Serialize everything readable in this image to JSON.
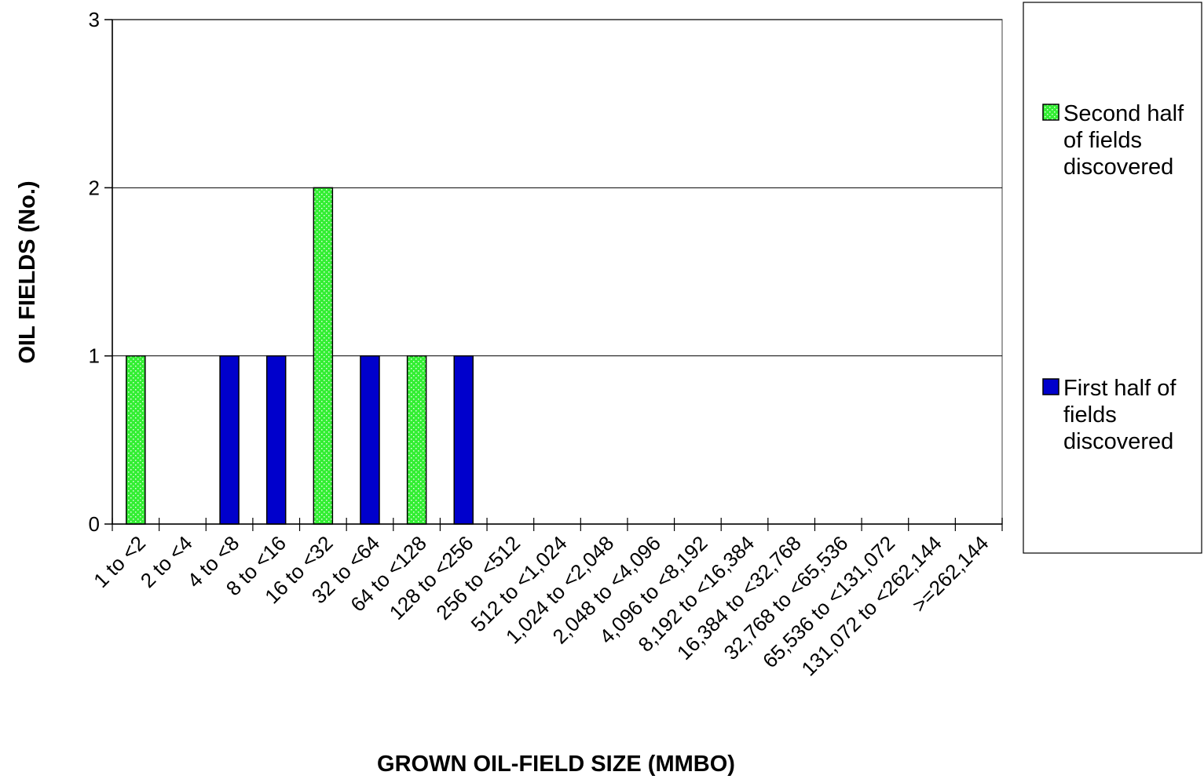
{
  "chart_data": {
    "type": "bar",
    "categories": [
      "1 to <2",
      "2 to <4",
      "4 to <8",
      "8 to <16",
      "16 to <32",
      "32 to <64",
      "64 to <128",
      "128 to <256",
      "256 to <512",
      "512 to <1,024",
      "1,024 to <2,048",
      "2,048 to <4,096",
      "4,096 to <8,192",
      "8,192 to <16,384",
      "16,384 to <32,768",
      "32,768 to <65,536",
      "65,536 to <131,072",
      "131,072 to <262,144",
      ">=262,144"
    ],
    "series": [
      {
        "name": "Second half of fields discovered",
        "color": "#33ee33",
        "values": [
          1,
          0,
          0,
          0,
          2,
          0,
          1,
          0,
          0,
          0,
          0,
          0,
          0,
          0,
          0,
          0,
          0,
          0,
          0
        ]
      },
      {
        "name": "First half of fields discovered",
        "color": "#0000cc",
        "values": [
          0,
          0,
          1,
          1,
          0,
          1,
          0,
          1,
          0,
          0,
          0,
          0,
          0,
          0,
          0,
          0,
          0,
          0,
          0
        ]
      }
    ],
    "xlabel": "GROWN OIL-FIELD SIZE (MMBO)",
    "ylabel": "OIL FIELDS (No.)",
    "ylim": [
      0,
      3
    ],
    "yticks": [
      0,
      1,
      2,
      3
    ],
    "grid": true,
    "legend": {
      "position": "right",
      "entries": [
        [
          "Second half",
          "of fields",
          "discovered"
        ],
        [
          "First half of",
          "fields",
          "discovered"
        ]
      ]
    }
  }
}
